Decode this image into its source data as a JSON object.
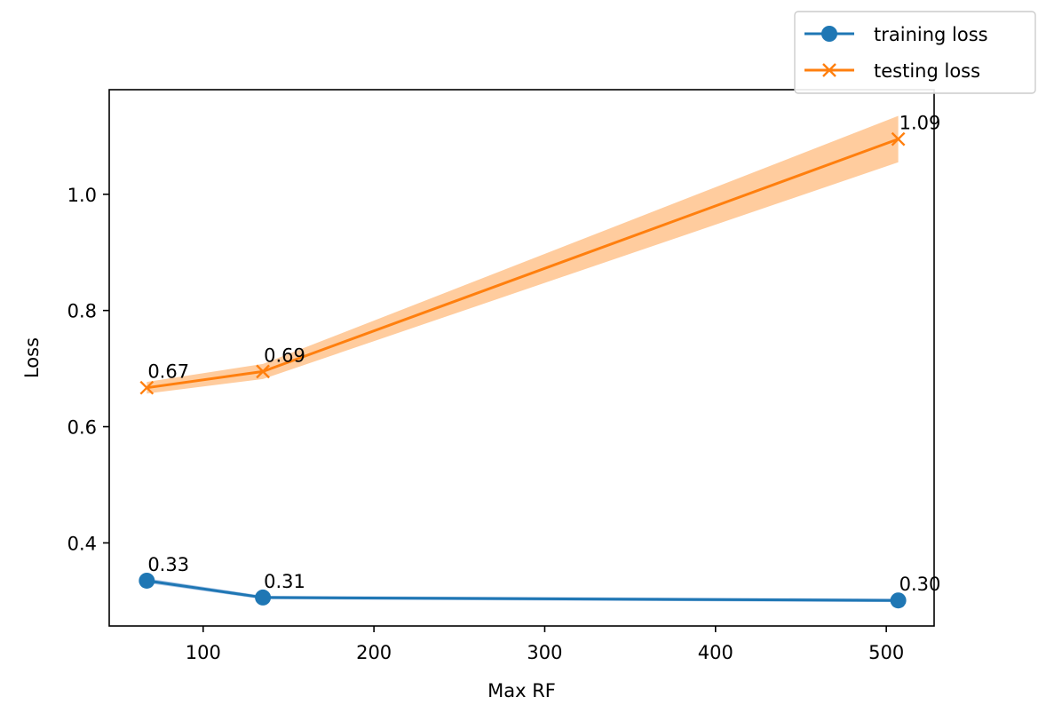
{
  "chart_data": {
    "type": "line",
    "xlabel": "Max RF",
    "ylabel": "Loss",
    "xlim": [
      45,
      528
    ],
    "ylim": [
      0.257,
      1.18
    ],
    "x_ticks": [
      100,
      200,
      300,
      400,
      500
    ],
    "x_tick_labels": [
      "100",
      "200",
      "300",
      "400",
      "500"
    ],
    "y_ticks": [
      0.4,
      0.6,
      0.8,
      1.0
    ],
    "y_tick_labels": [
      "0.4",
      "0.6",
      "0.8",
      "1.0"
    ],
    "grid": false,
    "legend_position": "upper right, outside the axes",
    "series": [
      {
        "name": "training loss",
        "marker": "circle",
        "color": "#1f77b4",
        "band_color": "#aec7e8",
        "x": [
          67,
          135,
          507
        ],
        "values": [
          0.335,
          0.306,
          0.301
        ],
        "band_low": [
          0.331,
          0.303,
          0.298
        ],
        "band_high": [
          0.339,
          0.309,
          0.304
        ],
        "data_labels": [
          "0.33",
          "0.31",
          "0.30"
        ]
      },
      {
        "name": "testing loss",
        "marker": "x",
        "color": "#ff7f0e",
        "band_color": "#ffcc9e",
        "x": [
          67,
          135,
          507
        ],
        "values": [
          0.667,
          0.695,
          1.095
        ],
        "band_low": [
          0.657,
          0.682,
          1.055
        ],
        "band_high": [
          0.677,
          0.708,
          1.135
        ],
        "data_labels": [
          "0.67",
          "0.69",
          "1.09"
        ]
      }
    ]
  }
}
